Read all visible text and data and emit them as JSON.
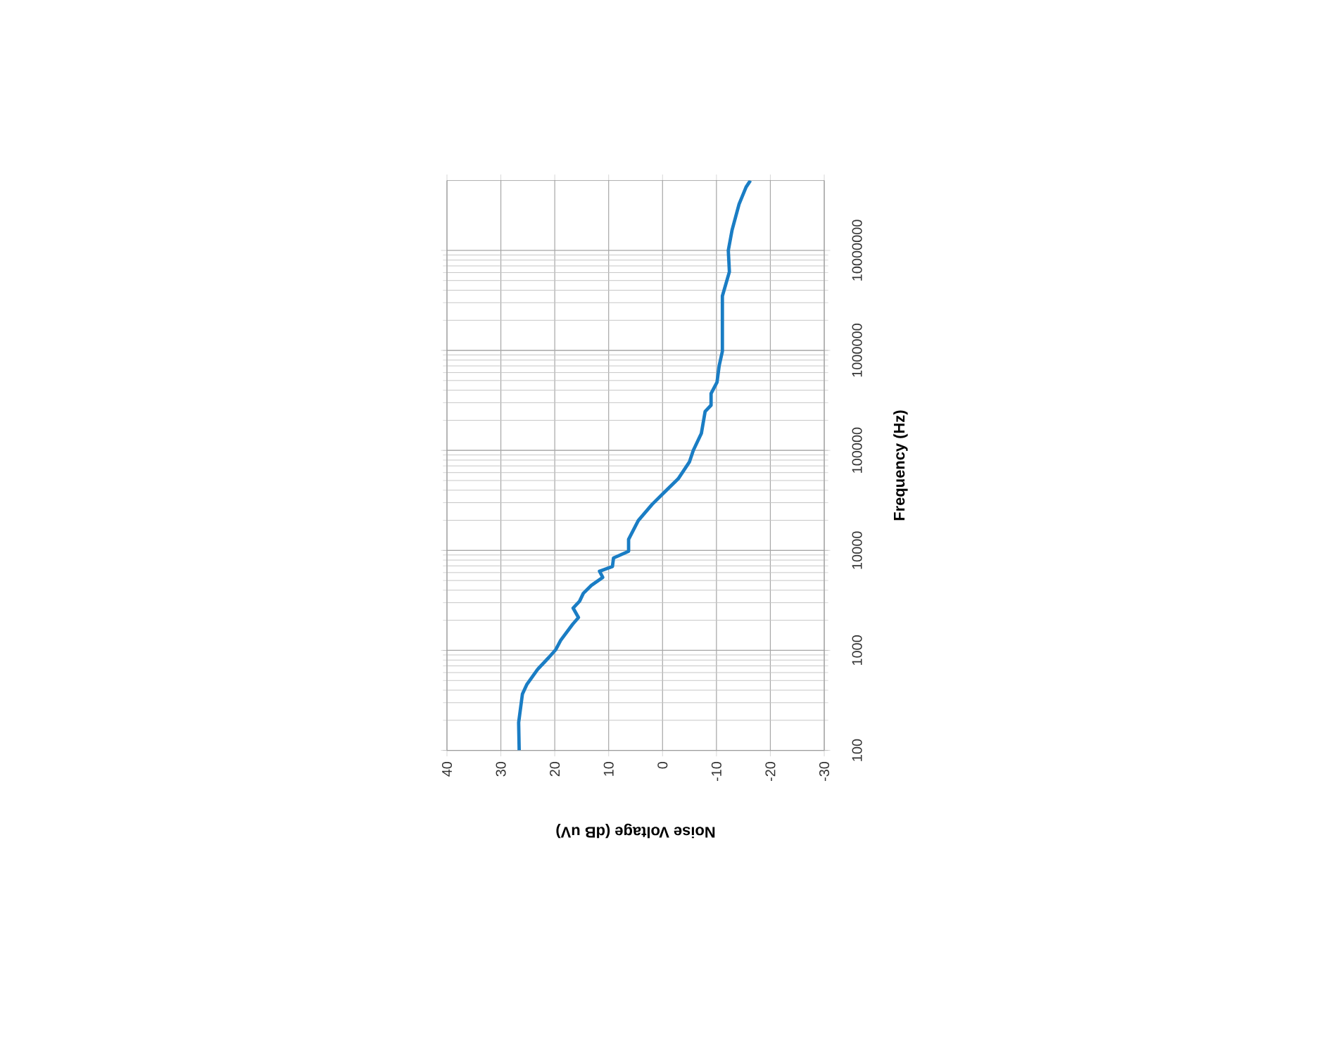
{
  "chart_data": {
    "type": "line",
    "xlabel": "Noise Voltage (dB uV)",
    "ylabel": "Frequency (Hz)",
    "log": "y",
    "ylim": [
      100,
      50000000
    ],
    "yticks": [
      {
        "value": 100,
        "label": "100"
      },
      {
        "value": 1000,
        "label": "1000"
      },
      {
        "value": 10000,
        "label": "10000"
      },
      {
        "value": 100000,
        "label": "100000"
      },
      {
        "value": 1000000,
        "label": "1000000"
      },
      {
        "value": 10000000,
        "label": "10000000"
      }
    ],
    "xlim": [
      40,
      -30
    ],
    "xticks": [
      {
        "value": 40,
        "label": "40"
      },
      {
        "value": 30,
        "label": "30"
      },
      {
        "value": 20,
        "label": "20"
      },
      {
        "value": 10,
        "label": "10"
      },
      {
        "value": 0,
        "label": "0"
      },
      {
        "value": -10,
        "label": "-10"
      },
      {
        "value": -20,
        "label": "-20"
      },
      {
        "value": -30,
        "label": "-30"
      }
    ],
    "grid": true,
    "marker": "none",
    "line_style": "solid",
    "series": [
      {
        "color": "#1a7dc4",
        "x": [
          26.6,
          26.7,
          26.0,
          25.2,
          23.2,
          21.1,
          19.8,
          18.9,
          16.7,
          15.6,
          16.6,
          15.4,
          14.7,
          13.2,
          11.1,
          11.7,
          9.3,
          9.1,
          6.3,
          6.3,
          4.5,
          1.9,
          -0.3,
          -2.9,
          -5.0,
          -5.7,
          -7.2,
          -7.9,
          -9.0,
          -9.0,
          -10.1,
          -10.5,
          -11.1,
          -11.1,
          -12.4,
          -12.2,
          -12.9,
          -14.2,
          -15.5,
          -16.3
        ],
        "values": [
          100,
          190,
          366,
          454,
          645,
          850,
          1020,
          1260,
          1820,
          2130,
          2650,
          3100,
          3720,
          4470,
          5370,
          6190,
          6900,
          8400,
          9800,
          12900,
          19900,
          29000,
          38000,
          52000,
          77000,
          100000,
          148000,
          245000,
          283000,
          370000,
          480000,
          700000,
          980000,
          3500000,
          6100000,
          10000000,
          16000000,
          29000000,
          43000000,
          50000000
        ]
      }
    ]
  }
}
